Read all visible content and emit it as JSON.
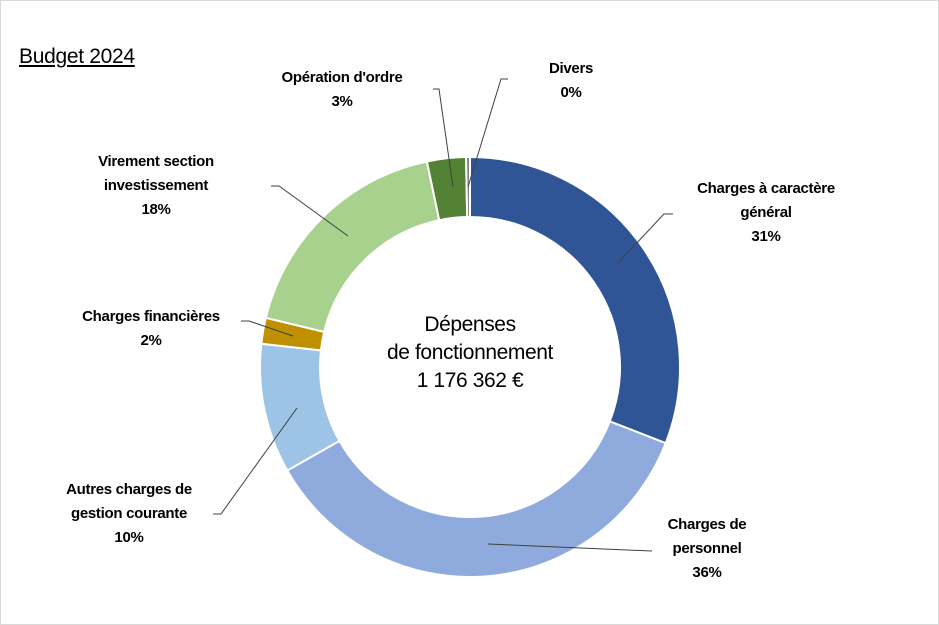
{
  "title": "Budget 2024",
  "chart_data": {
    "type": "pie",
    "subtype": "donut",
    "title": "Budget 2024",
    "center_text": [
      "Dépenses",
      "de fonctionnement",
      "1 176 362 €"
    ],
    "start": "top, clockwise",
    "slices": [
      {
        "label": "Charges à caractère général",
        "label_lines": [
          "Charges à caractère",
          "général"
        ],
        "pct_label": "31%",
        "value": 31,
        "color": "#2F5597"
      },
      {
        "label": "Charges de personnel",
        "label_lines": [
          "Charges de",
          "personnel"
        ],
        "pct_label": "36%",
        "value": 36,
        "color": "#8FAADC"
      },
      {
        "label": "Autres charges de gestion courante",
        "label_lines": [
          "Autres charges de",
          "gestion courante"
        ],
        "pct_label": "10%",
        "value": 10,
        "color": "#9DC3E6"
      },
      {
        "label": "Charges financières",
        "label_lines": [
          "Charges financières"
        ],
        "pct_label": "2%",
        "value": 2,
        "color": "#BF9000"
      },
      {
        "label": "Virement section investissement",
        "label_lines": [
          "Virement section",
          "investissement"
        ],
        "pct_label": "18%",
        "value": 18,
        "color": "#A9D18E"
      },
      {
        "label": "Opération d'ordre",
        "label_lines": [
          "Opération d'ordre"
        ],
        "pct_label": "3%",
        "value": 3,
        "color": "#548235"
      },
      {
        "label": "Divers",
        "label_lines": [
          "Divers"
        ],
        "pct_label": "0%",
        "value": 0.3,
        "color": "#7F7F7F"
      }
    ]
  }
}
